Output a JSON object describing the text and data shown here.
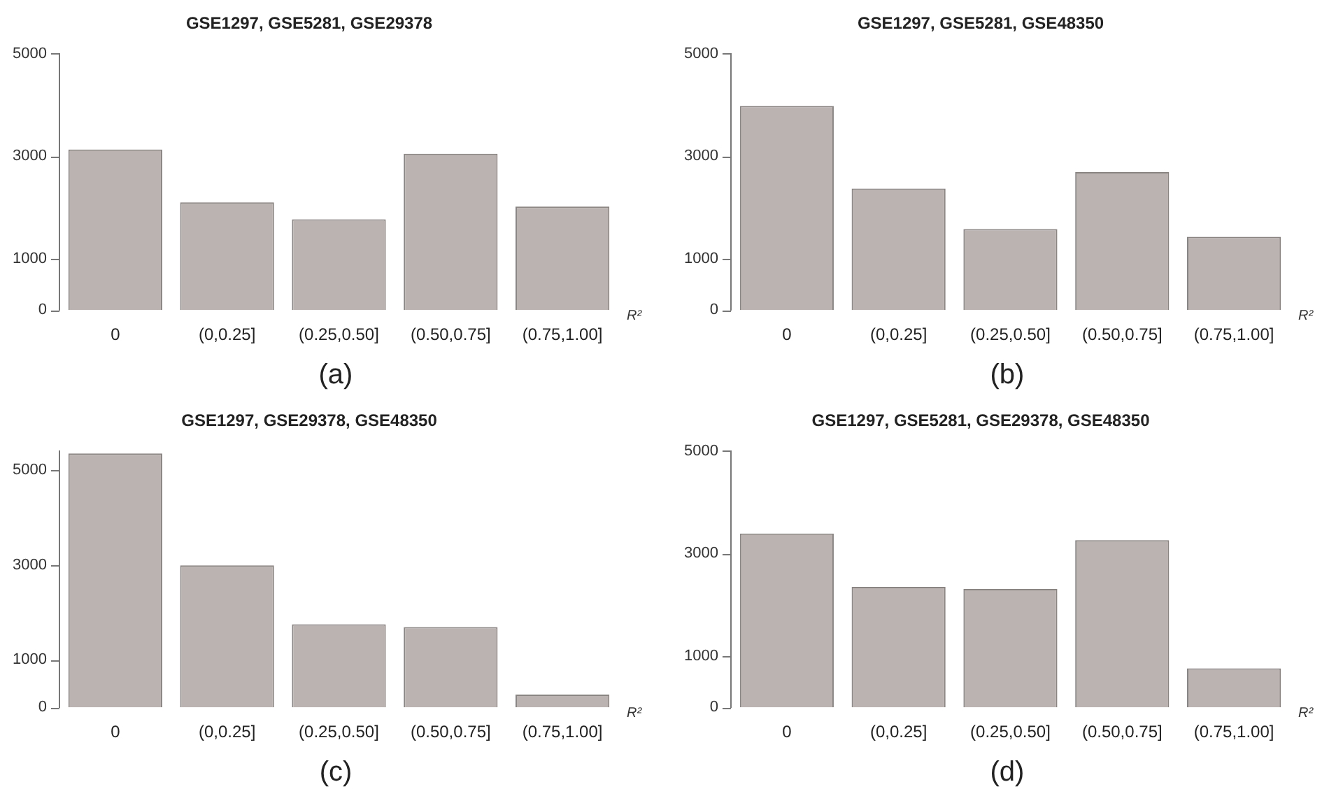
{
  "chart_data": [
    {
      "type": "bar",
      "title": "GSE1297, GSE5281, GSE29378",
      "xlabel": "R²",
      "categories": [
        "0",
        "(0,0.25]",
        "(0.25,0.50]",
        "(0.50,0.75]",
        "(0.75,1.00]"
      ],
      "values": [
        3130,
        2100,
        1770,
        3050,
        2020
      ],
      "color": "#bab3b2",
      "ylim": [
        0,
        5000
      ],
      "yticks": [
        0,
        1000,
        3000,
        5000
      ],
      "annotations": [
        "(a)"
      ]
    },
    {
      "type": "bar",
      "title": "GSE1297, GSE5281, GSE48350",
      "xlabel": "R²",
      "categories": [
        "0",
        "(0,0.25]",
        "(0.25,0.50]",
        "(0.50,0.75]",
        "(0.75,1.00]"
      ],
      "values": [
        3980,
        2370,
        1580,
        2690,
        1430
      ],
      "color": "#bab3b2",
      "ylim": [
        0,
        5000
      ],
      "yticks": [
        0,
        1000,
        3000,
        5000
      ],
      "annotations": [
        "(b)"
      ]
    },
    {
      "type": "bar",
      "title": "GSE1297, GSE29378, GSE48350",
      "xlabel": "R²",
      "categories": [
        "0",
        "(0,0.25]",
        "(0.25,0.50]",
        "(0.50,0.75]",
        "(0.75,1.00]"
      ],
      "values": [
        5350,
        2990,
        1750,
        1690,
        270
      ],
      "color": "#bab3b2",
      "ylim": [
        0,
        5400
      ],
      "yticks": [
        0,
        1000,
        3000,
        5000
      ],
      "annotations": [
        "(c)"
      ]
    },
    {
      "type": "bar",
      "title": "GSE1297, GSE5281, GSE29378, GSE48350",
      "xlabel": "R²",
      "categories": [
        "0",
        "(0,0.25]",
        "(0.25,0.50]",
        "(0.50,0.75]",
        "(0.75,1.00]"
      ],
      "values": [
        3390,
        2350,
        2310,
        3260,
        760
      ],
      "color": "#bab3b2",
      "ylim": [
        0,
        5000
      ],
      "yticks": [
        0,
        1000,
        3000,
        5000
      ],
      "annotations": [
        "(d)"
      ]
    }
  ]
}
